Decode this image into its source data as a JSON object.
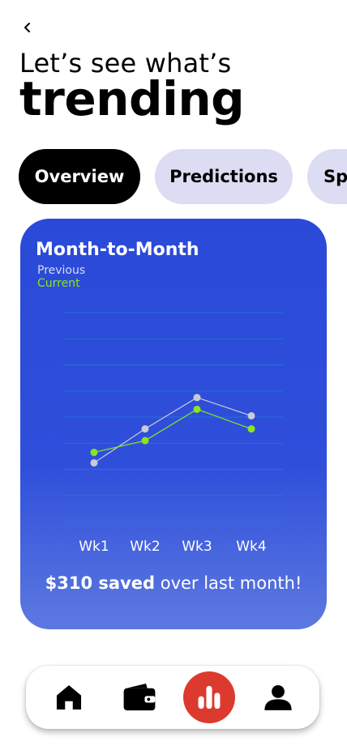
{
  "header": {
    "subtitle": "Let’s see what’s",
    "title": "trending"
  },
  "tabs": [
    {
      "label": "Overview",
      "active": true
    },
    {
      "label": "Predictions",
      "active": false
    },
    {
      "label": "Spending",
      "active": false
    }
  ],
  "card": {
    "title": "Month-to-Month",
    "legend": {
      "previous": "Previous",
      "current": "Current"
    },
    "savings": {
      "amount": "$310 saved",
      "suffix": " over last month!"
    }
  },
  "chart_data": {
    "type": "line",
    "categories": [
      "Wk1",
      "Wk2",
      "Wk3",
      "Wk4"
    ],
    "series": [
      {
        "name": "Previous",
        "color": "#c9cbd8",
        "values": [
          1.0,
          3.6,
          6.0,
          4.6
        ]
      },
      {
        "name": "Current",
        "color": "#8de51b",
        "values": [
          1.8,
          2.7,
          5.1,
          3.6
        ]
      }
    ],
    "ylim": [
      -3.5,
      12.5
    ],
    "grid": true,
    "legend_position": "top-left"
  },
  "nav": {
    "items": [
      {
        "icon": "home-icon",
        "active": false
      },
      {
        "icon": "wallet-icon",
        "active": false
      },
      {
        "icon": "chart-bar-icon",
        "active": true
      },
      {
        "icon": "user-icon",
        "active": false
      }
    ]
  },
  "colors": {
    "card_background": "#2a49d8",
    "active_tab": "#000000",
    "inactive_tab": "#dcdcf3",
    "nav_active": "#dc3a2e",
    "current_series": "#8de51b",
    "previous_series": "#c9cbd8"
  }
}
